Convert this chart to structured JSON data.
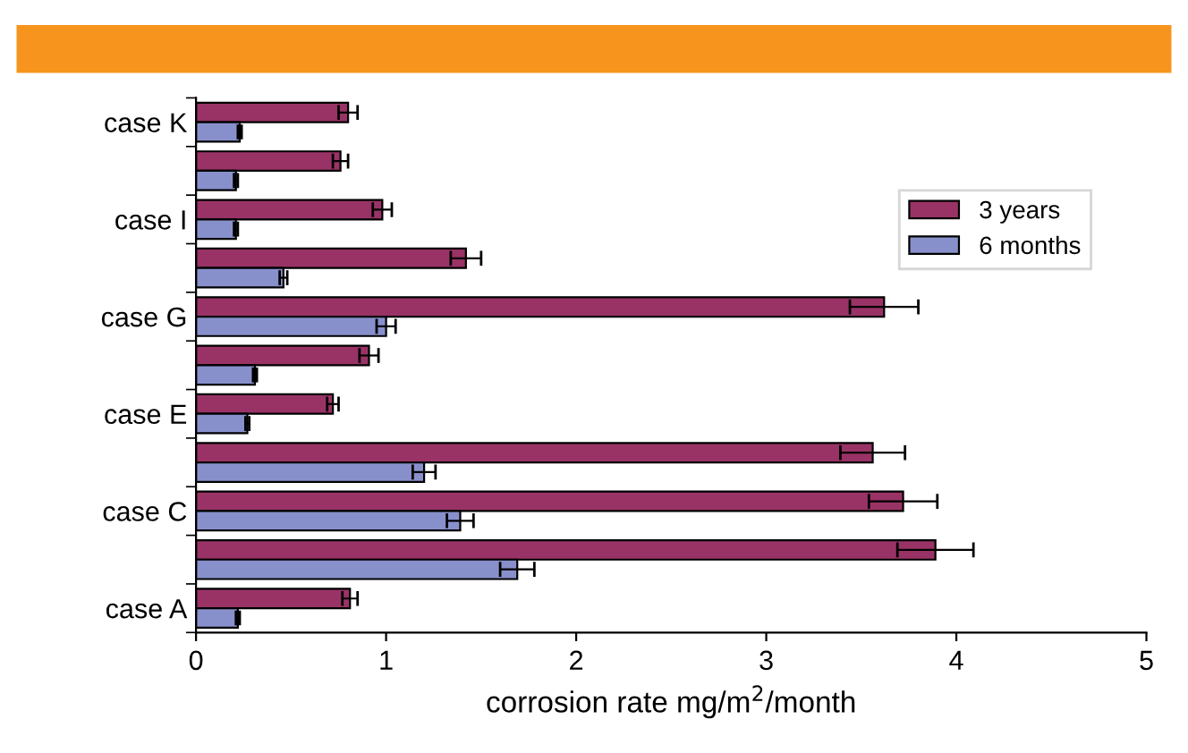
{
  "chart_data": {
    "type": "bar",
    "orientation": "horizontal",
    "xlabel": "corrosion rate mg/m$^{2}$/month",
    "categories": [
      "case K",
      null,
      "case I",
      null,
      "case G",
      null,
      "case E",
      null,
      "case C",
      null,
      "case A"
    ],
    "series": [
      {
        "name": "3 years",
        "color": "#993366",
        "values": [
          0.8,
          0.76,
          0.98,
          1.42,
          3.62,
          0.91,
          0.72,
          3.56,
          3.72,
          3.89,
          0.81
        ],
        "errors": [
          0.05,
          0.04,
          0.05,
          0.08,
          0.18,
          0.05,
          0.03,
          0.17,
          0.18,
          0.2,
          0.04
        ]
      },
      {
        "name": "6 months",
        "color": "#8890cc",
        "values": [
          0.23,
          0.21,
          0.21,
          0.46,
          1.0,
          0.31,
          0.27,
          1.2,
          1.39,
          1.69,
          0.22
        ],
        "errors": [
          0.01,
          0.01,
          0.01,
          0.02,
          0.05,
          0.01,
          0.01,
          0.06,
          0.07,
          0.09,
          0.01
        ]
      }
    ],
    "xlim": [
      0,
      5
    ],
    "xticks": [
      0,
      1,
      2,
      3,
      4,
      5
    ],
    "grid": false,
    "legend": "top right"
  }
}
